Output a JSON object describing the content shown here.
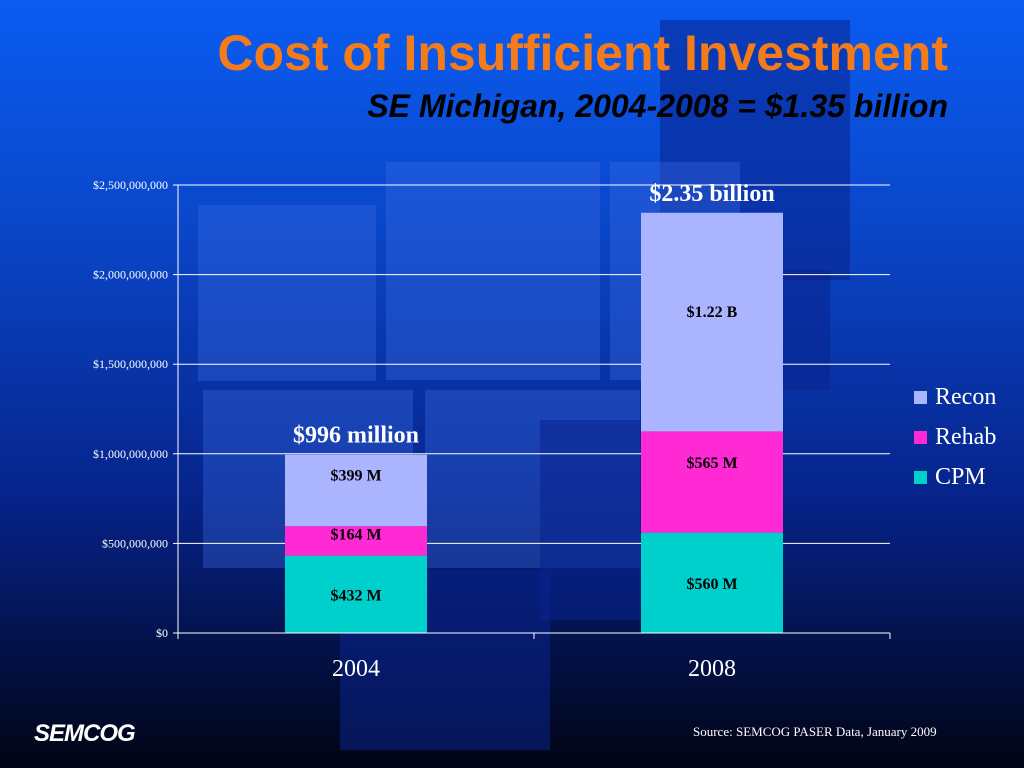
{
  "slide": {
    "title": "Cost of Insufficient Investment",
    "subtitle": "SE Michigan, 2004-2008 = $1.35 billion",
    "logo": "SEMCOG",
    "source": "Source: SEMCOG PASER Data, January 2009"
  },
  "chart_data": {
    "type": "bar",
    "stacked": true,
    "categories": [
      "2004",
      "2008"
    ],
    "series": [
      {
        "name": "CPM",
        "values": [
          432000000,
          560000000
        ],
        "labels": [
          "$432 M",
          "$560 M"
        ],
        "color": "#00d0cc"
      },
      {
        "name": "Rehab",
        "values": [
          164000000,
          565000000
        ],
        "labels": [
          "$164 M",
          "$565 M"
        ],
        "color": "#ff2ad4"
      },
      {
        "name": "Recon",
        "values": [
          399000000,
          1220000000
        ],
        "labels": [
          "$399 M",
          "$1.22 B"
        ],
        "color": "#aab4ff"
      }
    ],
    "totals": [
      996000000,
      2350000000
    ],
    "total_labels": [
      "$996 million",
      "$2.35 billion"
    ],
    "yticks": [
      0,
      500000000,
      1000000000,
      1500000000,
      2000000000,
      2500000000
    ],
    "ytick_labels": [
      "$0",
      "$500,000,000",
      "$1,000,000,000",
      "$1,500,000,000",
      "$2,000,000,000",
      "$2,500,000,000"
    ],
    "ylim": [
      0,
      2500000000
    ],
    "grid": true,
    "legend_position": "right",
    "legend_order": [
      "Recon",
      "Rehab",
      "CPM"
    ]
  }
}
